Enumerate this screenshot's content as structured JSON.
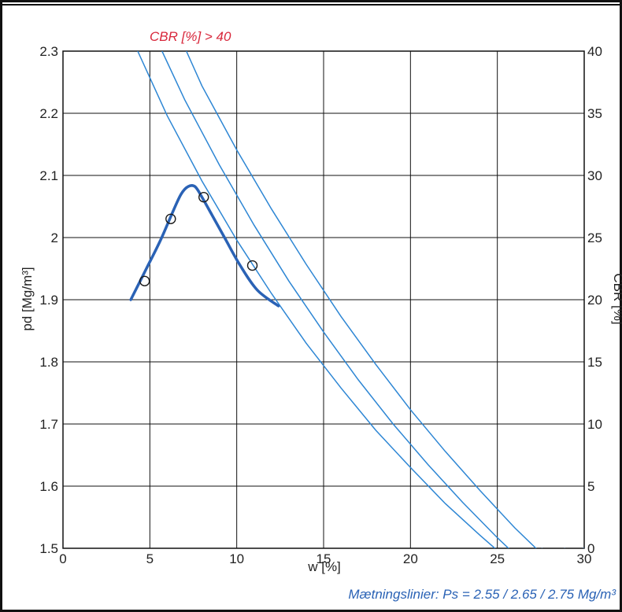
{
  "colors": {
    "curve": "#2a62b5",
    "saturation": "#2d86d4",
    "annotation_red": "#d8283c",
    "footer_blue": "#2a62b5",
    "grid": "#111111"
  },
  "chart_data": {
    "type": "line",
    "title": "",
    "xlabel": "w [%]",
    "ylabel": "pd [Mg/m³]",
    "y2label": "CBR [%]",
    "xlim": [
      0,
      30
    ],
    "ylim": [
      1.5,
      2.3
    ],
    "y2lim": [
      0,
      40
    ],
    "grid": true,
    "x_ticks": [
      "0",
      "5",
      "10",
      "15",
      "20",
      "25",
      "30"
    ],
    "y_ticks": [
      "1.5",
      "1.6",
      "1.7",
      "1.8",
      "1.9",
      "2",
      "2.1",
      "2.2",
      "2.3"
    ],
    "y2_ticks": [
      "0",
      "5",
      "10",
      "15",
      "20",
      "25",
      "30",
      "35",
      "40"
    ],
    "annotations": {
      "cbr": "CBR [%] > 40",
      "saturation_lines": "Mætningslinier: Ps = 2.55 / 2.65 / 2.75 Mg/m³"
    },
    "points": {
      "x": [
        4.7,
        6.2,
        8.1,
        10.9
      ],
      "y": [
        1.93,
        2.03,
        2.065,
        1.955
      ]
    },
    "compaction_curve": {
      "x": [
        3.9,
        4.8,
        5.6,
        6.3,
        6.8,
        7.2,
        7.6,
        8.0,
        8.6,
        9.3,
        10.2,
        11.2,
        12.4
      ],
      "y": [
        1.9,
        1.95,
        1.995,
        2.04,
        2.07,
        2.082,
        2.082,
        2.065,
        2.035,
        2.0,
        1.955,
        1.915,
        1.89
      ]
    },
    "saturation_lines": [
      {
        "ps": 2.55,
        "x": [
          4.3,
          6.0,
          8.0,
          10.0,
          12.0,
          14.0,
          16.0,
          18.0,
          20.0,
          22.0,
          24.0,
          26.0,
          27.6
        ],
        "y": [
          2.3,
          2.196,
          2.091,
          1.996,
          1.91,
          1.83,
          1.758,
          1.69,
          1.63,
          1.572,
          1.521,
          1.472,
          1.5
        ]
      },
      {
        "ps": 2.65,
        "x": [
          5.7,
          7.0,
          9.0,
          11.0,
          13.0,
          15.0,
          17.0,
          19.0,
          21.0,
          23.0,
          25.0,
          27.0,
          28.9
        ],
        "y": [
          2.3,
          2.222,
          2.117,
          2.02,
          1.93,
          1.848,
          1.771,
          1.7,
          1.635,
          1.574,
          1.517,
          1.464,
          1.5
        ]
      },
      {
        "ps": 2.75,
        "x": [
          7.1,
          8.0,
          10.0,
          12.0,
          14.0,
          16.0,
          18.0,
          20.0,
          22.0,
          24.0,
          26.0,
          28.0,
          30.0
        ],
        "y": [
          2.3,
          2.244,
          2.141,
          2.046,
          1.957,
          1.873,
          1.796,
          1.723,
          1.656,
          1.593,
          1.533,
          1.479,
          1.5
        ]
      }
    ]
  }
}
